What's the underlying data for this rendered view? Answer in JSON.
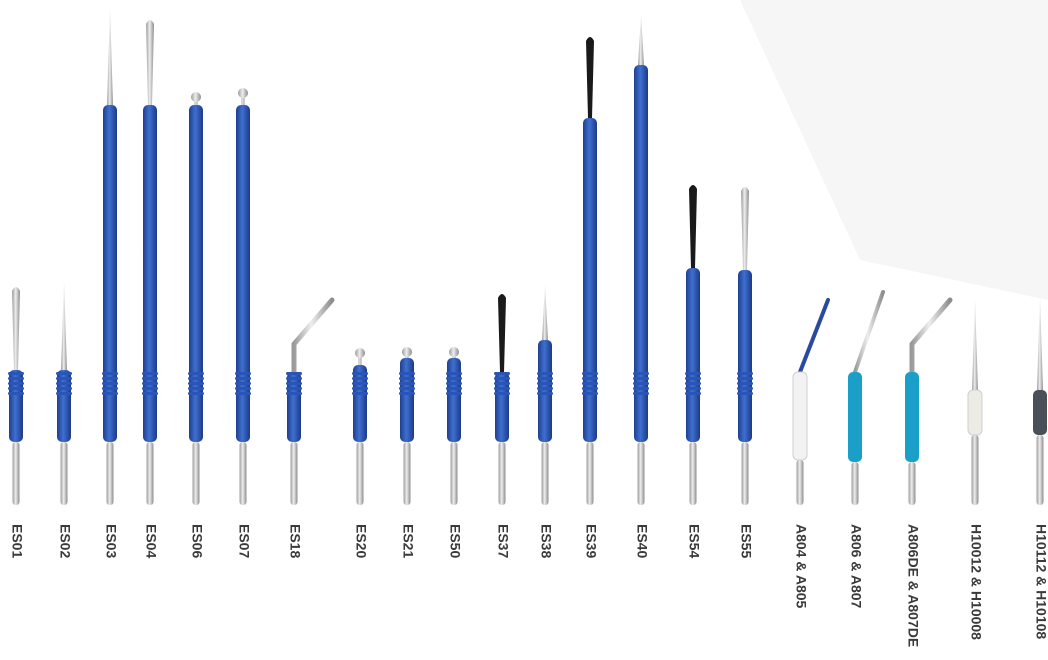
{
  "labels": [
    "ES01",
    "ES02",
    "ES03",
    "ES04",
    "ES06",
    "ES07",
    "ES18",
    "ES20",
    "ES21",
    "ES50",
    "ES37",
    "ES38",
    "ES39",
    "ES40",
    "ES54",
    "ES55",
    "A804 & A805",
    "A806 & A807",
    "A806DE & A807DE",
    "H10012 & H10008",
    "H10112 & H10108"
  ]
}
